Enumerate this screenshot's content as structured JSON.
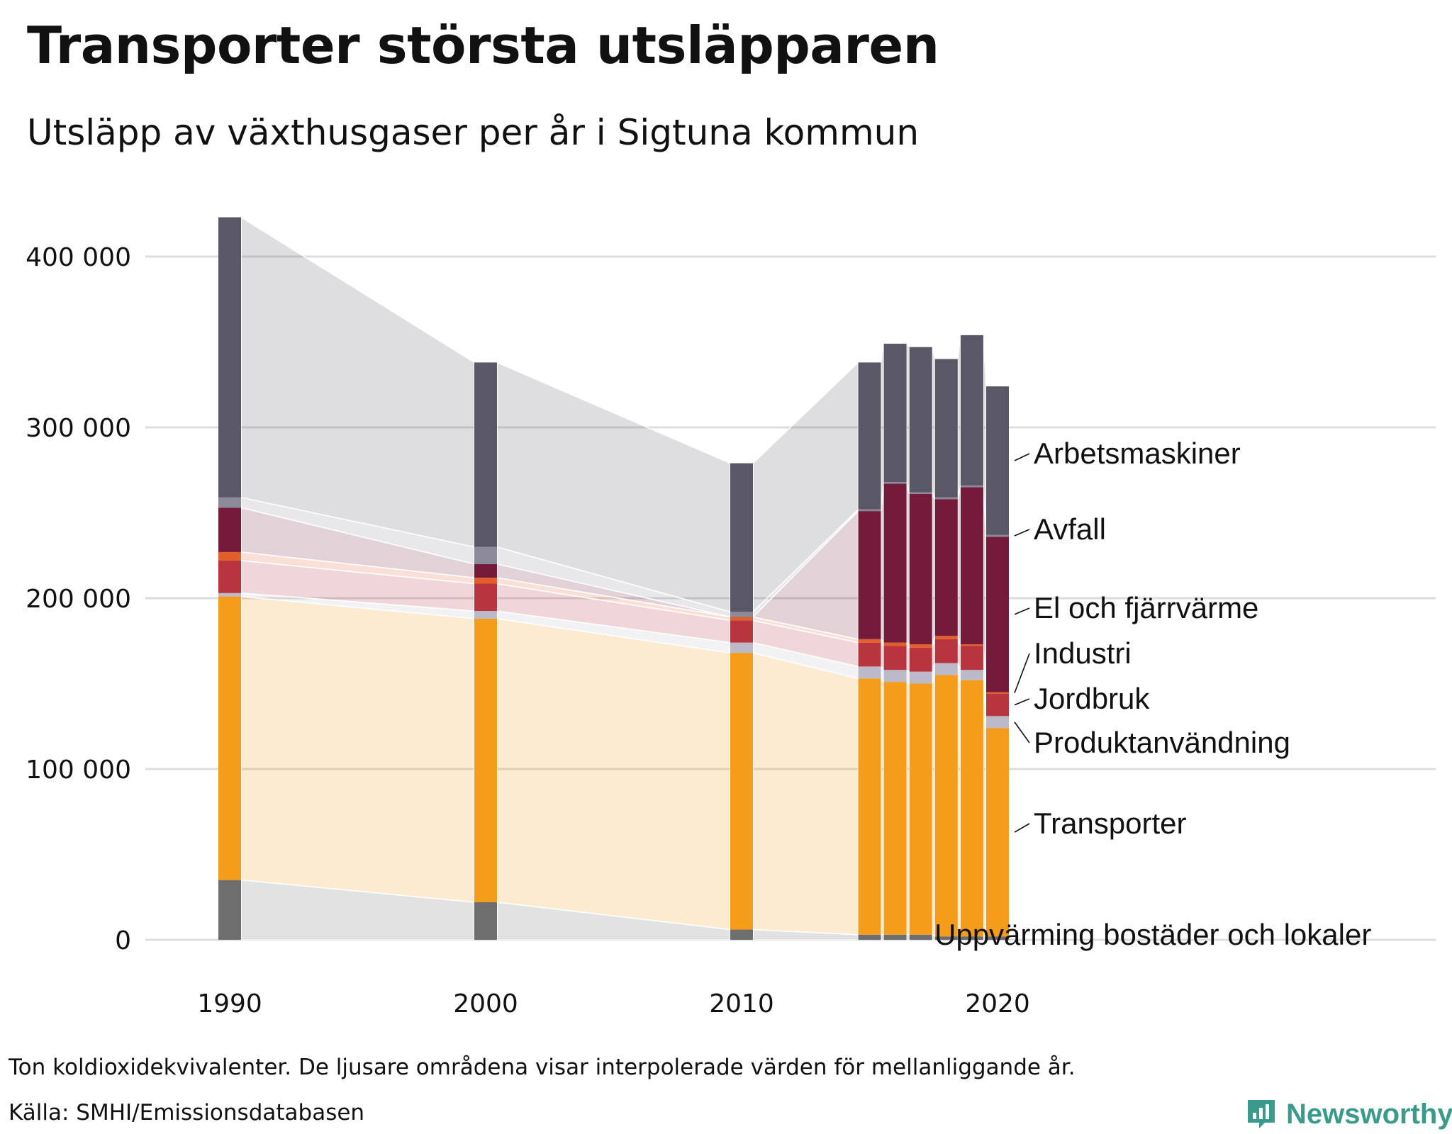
{
  "header": {
    "title": "Transporter största utsläpparen",
    "subtitle": "Utsläpp av växthusgaser per år i Sigtuna kommun"
  },
  "footer": {
    "note": "Ton koldioxidekvivalenter. De ljusare områdena visar interpolerade värden för mellanliggande år.",
    "source": "Källa: SMHI/Emissionsdatabasen",
    "brand": "Newsworthy"
  },
  "colors": {
    "Uppvärming bostäder och lokaler": "#6e6e6e",
    "Transporter": "#f59c1a",
    "Produktanvändning": "#bcbac8",
    "Jordbruk": "#b8343f",
    "Industri": "#e25f2b",
    "El och fjärrvärme": "#741b3b",
    "Avfall": "#8c8a9a",
    "Arbetsmaskiner": "#5a5766",
    "grid": "#dddddd",
    "brand": "#3a9b8c"
  },
  "chart_data": {
    "type": "bar",
    "stacked": true,
    "title": "Transporter största utsläpparen",
    "subtitle": "Utsläpp av växthusgaser per år i Sigtuna kommun",
    "xlabel": "",
    "ylabel": "Ton koldioxidekvivalenter",
    "ylim": [
      0,
      420000
    ],
    "yticks": [
      0,
      100000,
      200000,
      300000,
      400000
    ],
    "ytick_labels": [
      "0",
      "100 000",
      "200 000",
      "300 000",
      "400 000"
    ],
    "xlim": [
      1990,
      2020
    ],
    "xticks": [
      1990,
      2000,
      2010,
      2020
    ],
    "xtick_labels": [
      "1990",
      "2000",
      "2010",
      "2020"
    ],
    "categories": [
      1990,
      2000,
      2010,
      2015,
      2016,
      2017,
      2018,
      2019,
      2020
    ],
    "interpolated_areas": true,
    "grid": true,
    "series": [
      {
        "name": "Uppvärming bostäder och lokaler",
        "values": [
          35000,
          22000,
          6000,
          3000,
          3000,
          3000,
          2000,
          2000,
          2000
        ]
      },
      {
        "name": "Transporter",
        "values": [
          166000,
          166000,
          162000,
          150000,
          148000,
          147000,
          153000,
          150000,
          122000
        ]
      },
      {
        "name": "Produktanvändning",
        "values": [
          2000,
          4500,
          6000,
          7000,
          7000,
          7000,
          7000,
          6000,
          7000
        ]
      },
      {
        "name": "Jordbruk",
        "values": [
          19000,
          16000,
          13000,
          14000,
          14000,
          14000,
          14000,
          14000,
          13000
        ]
      },
      {
        "name": "Industri",
        "values": [
          5000,
          3500,
          2000,
          2000,
          2000,
          2000,
          2000,
          1000,
          1000
        ]
      },
      {
        "name": "El och fjärrvärme",
        "values": [
          26000,
          8000,
          0,
          75000,
          93000,
          88000,
          80000,
          92000,
          91000
        ]
      },
      {
        "name": "Avfall",
        "values": [
          6000,
          10000,
          3000,
          1000,
          1000,
          1000,
          1000,
          1000,
          1000
        ]
      },
      {
        "name": "Arbetsmaskiner",
        "values": [
          164000,
          108000,
          87000,
          86000,
          81000,
          85000,
          81000,
          88000,
          87000
        ]
      }
    ]
  }
}
